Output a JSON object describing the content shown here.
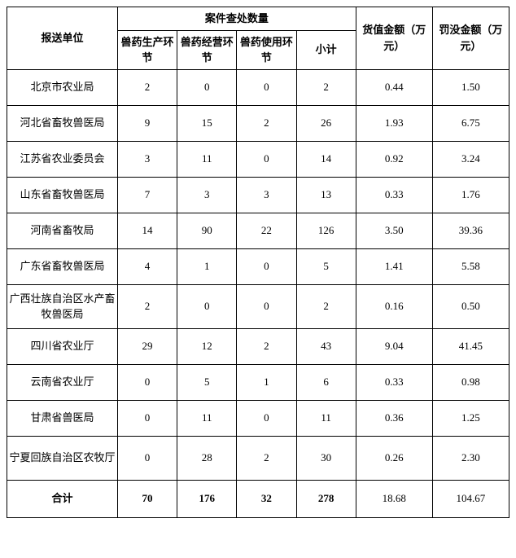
{
  "table": {
    "type": "table",
    "background_color": "#ffffff",
    "border_color": "#000000",
    "font_family": "SimSun",
    "header": {
      "unit": "报送单位",
      "cases_group": "案件查处数量",
      "col_prod": "兽药生产环节",
      "col_biz": "兽药经营环节",
      "col_use": "兽药使用环节",
      "col_sub": "小计",
      "col_value": "货值金额（万元）",
      "col_penalty": "罚没金额（万元）"
    },
    "columns": [
      "unit",
      "prod",
      "biz",
      "use",
      "sub",
      "value",
      "penalty"
    ],
    "rows": [
      {
        "unit": "北京市农业局",
        "prod": "2",
        "biz": "0",
        "use": "0",
        "sub": "2",
        "value": "0.44",
        "penalty": "1.50"
      },
      {
        "unit": "河北省畜牧兽医局",
        "prod": "9",
        "biz": "15",
        "use": "2",
        "sub": "26",
        "value": "1.93",
        "penalty": "6.75"
      },
      {
        "unit": "江苏省农业委员会",
        "prod": "3",
        "biz": "11",
        "use": "0",
        "sub": "14",
        "value": "0.92",
        "penalty": "3.24"
      },
      {
        "unit": "山东省畜牧兽医局",
        "prod": "7",
        "biz": "3",
        "use": "3",
        "sub": "13",
        "value": "0.33",
        "penalty": "1.76"
      },
      {
        "unit": "河南省畜牧局",
        "prod": "14",
        "biz": "90",
        "use": "22",
        "sub": "126",
        "value": "3.50",
        "penalty": "39.36"
      },
      {
        "unit": "广东省畜牧兽医局",
        "prod": "4",
        "biz": "1",
        "use": "0",
        "sub": "5",
        "value": "1.41",
        "penalty": "5.58"
      },
      {
        "unit": "广西壮族自治区水产畜牧兽医局",
        "prod": "2",
        "biz": "0",
        "use": "0",
        "sub": "2",
        "value": "0.16",
        "penalty": "0.50"
      },
      {
        "unit": "四川省农业厅",
        "prod": "29",
        "biz": "12",
        "use": "2",
        "sub": "43",
        "value": "9.04",
        "penalty": "41.45"
      },
      {
        "unit": "云南省农业厅",
        "prod": "0",
        "biz": "5",
        "use": "1",
        "sub": "6",
        "value": "0.33",
        "penalty": "0.98"
      },
      {
        "unit": "甘肃省兽医局",
        "prod": "0",
        "biz": "11",
        "use": "0",
        "sub": "11",
        "value": "0.36",
        "penalty": "1.25"
      },
      {
        "unit": "宁夏回族自治区农牧厅",
        "prod": "0",
        "biz": "28",
        "use": "2",
        "sub": "30",
        "value": "0.26",
        "penalty": "2.30"
      }
    ],
    "total": {
      "unit": "合计",
      "prod": "70",
      "biz": "176",
      "use": "32",
      "sub": "278",
      "value": "18.68",
      "penalty": "104.67"
    }
  }
}
